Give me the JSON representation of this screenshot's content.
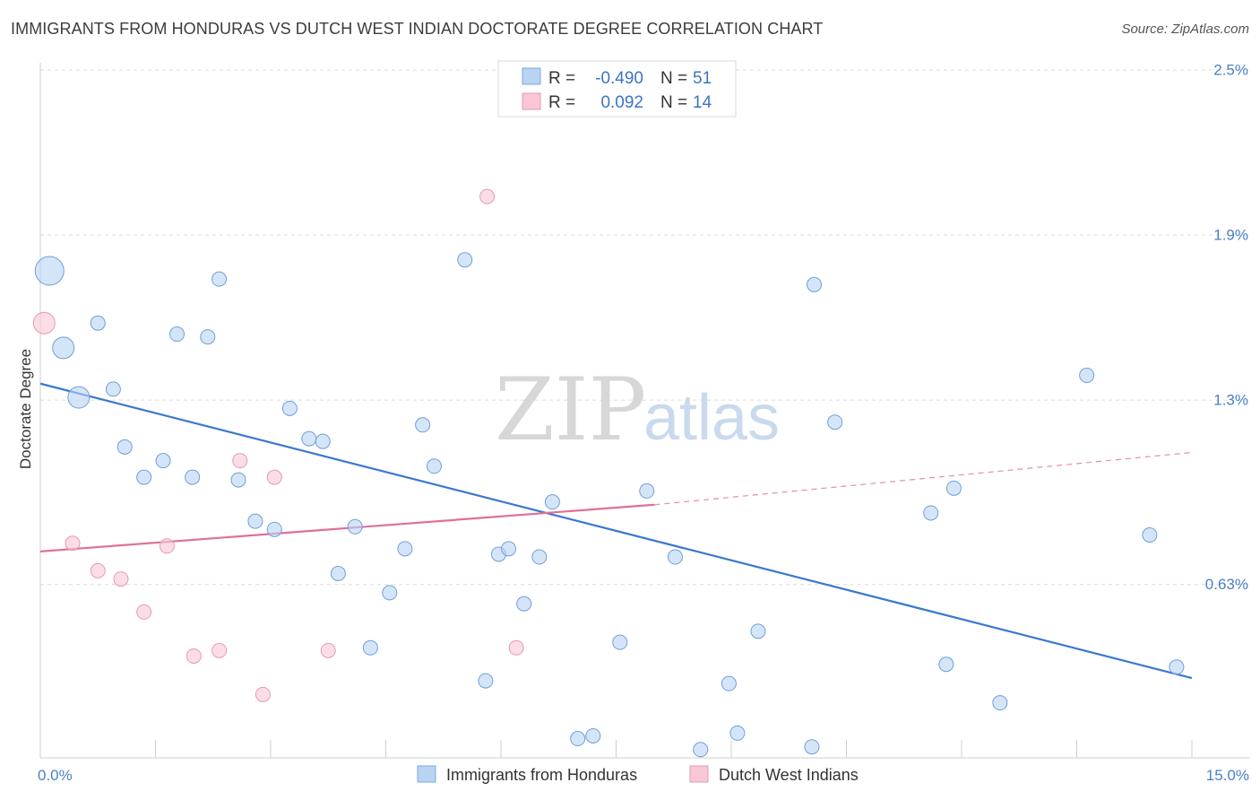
{
  "title": "IMMIGRANTS FROM HONDURAS VS DUTCH WEST INDIAN DOCTORATE DEGREE CORRELATION CHART",
  "source": "Source: ZipAtlas.com",
  "watermark": {
    "zip": "ZIP",
    "atlas": "atlas"
  },
  "legend_top": [
    {
      "r_label": "R =",
      "r_value": "-0.490",
      "n_label": "N =",
      "n_value": "51"
    },
    {
      "r_label": "R =",
      "r_value": "0.092",
      "n_label": "N =",
      "n_value": "14"
    }
  ],
  "legend_bottom": [
    "Immigrants from Honduras",
    "Dutch West Indians"
  ],
  "chart_data": {
    "type": "scatter",
    "xlabel": "",
    "ylabel": "Doctorate Degree",
    "xlim": [
      0,
      15
    ],
    "ylim": [
      0,
      2.5
    ],
    "x_tick_labels": [
      "0.0%",
      "15.0%"
    ],
    "y_ticks": [
      0.63,
      1.3,
      1.9,
      2.5
    ],
    "y_tick_labels": [
      "0.63%",
      "1.3%",
      "1.9%",
      "2.5%"
    ],
    "grid": true,
    "colors": {
      "series1": "#3a78d0",
      "series2": "#e06f9a",
      "fill1": "#b9d3f3",
      "fill2": "#f8c6d5"
    },
    "series": [
      {
        "name": "Immigrants from Honduras",
        "trend": {
          "x": [
            0,
            15
          ],
          "y": [
            1.36,
            0.29
          ]
        },
        "points": [
          {
            "x": 0.12,
            "y": 1.77,
            "big": 2
          },
          {
            "x": 0.3,
            "y": 1.49,
            "big": 1
          },
          {
            "x": 0.5,
            "y": 1.31,
            "big": 1
          },
          {
            "x": 0.75,
            "y": 1.58
          },
          {
            "x": 0.95,
            "y": 1.34
          },
          {
            "x": 1.1,
            "y": 1.13
          },
          {
            "x": 1.35,
            "y": 1.02
          },
          {
            "x": 1.6,
            "y": 1.08
          },
          {
            "x": 1.78,
            "y": 1.54
          },
          {
            "x": 1.98,
            "y": 1.02
          },
          {
            "x": 2.18,
            "y": 1.53
          },
          {
            "x": 2.33,
            "y": 1.74
          },
          {
            "x": 2.58,
            "y": 1.01
          },
          {
            "x": 2.8,
            "y": 0.86
          },
          {
            "x": 3.05,
            "y": 0.83
          },
          {
            "x": 3.25,
            "y": 1.27
          },
          {
            "x": 3.5,
            "y": 1.16
          },
          {
            "x": 3.68,
            "y": 1.15
          },
          {
            "x": 3.88,
            "y": 0.67
          },
          {
            "x": 4.1,
            "y": 0.84
          },
          {
            "x": 4.3,
            "y": 0.4
          },
          {
            "x": 4.55,
            "y": 0.6
          },
          {
            "x": 4.75,
            "y": 0.76
          },
          {
            "x": 4.98,
            "y": 1.21
          },
          {
            "x": 5.13,
            "y": 1.06
          },
          {
            "x": 5.53,
            "y": 1.81
          },
          {
            "x": 5.8,
            "y": 0.28
          },
          {
            "x": 5.97,
            "y": 0.74
          },
          {
            "x": 6.1,
            "y": 0.76
          },
          {
            "x": 6.3,
            "y": 0.56
          },
          {
            "x": 6.5,
            "y": 0.73
          },
          {
            "x": 6.67,
            "y": 0.93
          },
          {
            "x": 7.0,
            "y": 0.07
          },
          {
            "x": 7.2,
            "y": 0.08
          },
          {
            "x": 7.55,
            "y": 0.42
          },
          {
            "x": 7.9,
            "y": 0.97
          },
          {
            "x": 8.27,
            "y": 0.73
          },
          {
            "x": 8.6,
            "y": 0.03
          },
          {
            "x": 8.97,
            "y": 0.27
          },
          {
            "x": 9.08,
            "y": 0.09
          },
          {
            "x": 9.35,
            "y": 0.46
          },
          {
            "x": 10.05,
            "y": 0.04
          },
          {
            "x": 10.08,
            "y": 1.72
          },
          {
            "x": 10.35,
            "y": 1.22
          },
          {
            "x": 11.6,
            "y": 0.89
          },
          {
            "x": 11.8,
            "y": 0.34
          },
          {
            "x": 11.9,
            "y": 0.98
          },
          {
            "x": 12.5,
            "y": 0.2
          },
          {
            "x": 13.63,
            "y": 1.39
          },
          {
            "x": 14.45,
            "y": 0.81
          },
          {
            "x": 14.8,
            "y": 0.33
          }
        ]
      },
      {
        "name": "Dutch West Indians",
        "trend": {
          "x": [
            0,
            8
          ],
          "y": [
            0.75,
            0.92
          ]
        },
        "trend_ext": {
          "x": [
            8,
            15
          ],
          "y": [
            0.92,
            1.11
          ]
        },
        "points": [
          {
            "x": 0.05,
            "y": 1.58,
            "big": 1
          },
          {
            "x": 0.42,
            "y": 0.78
          },
          {
            "x": 0.75,
            "y": 0.68
          },
          {
            "x": 1.05,
            "y": 0.65
          },
          {
            "x": 1.35,
            "y": 0.53
          },
          {
            "x": 1.65,
            "y": 0.77
          },
          {
            "x": 2.0,
            "y": 0.37
          },
          {
            "x": 2.33,
            "y": 0.39
          },
          {
            "x": 2.6,
            "y": 1.08
          },
          {
            "x": 2.9,
            "y": 0.23
          },
          {
            "x": 3.05,
            "y": 1.02
          },
          {
            "x": 3.75,
            "y": 0.39
          },
          {
            "x": 5.82,
            "y": 2.04
          },
          {
            "x": 6.2,
            "y": 0.4
          }
        ]
      }
    ]
  }
}
